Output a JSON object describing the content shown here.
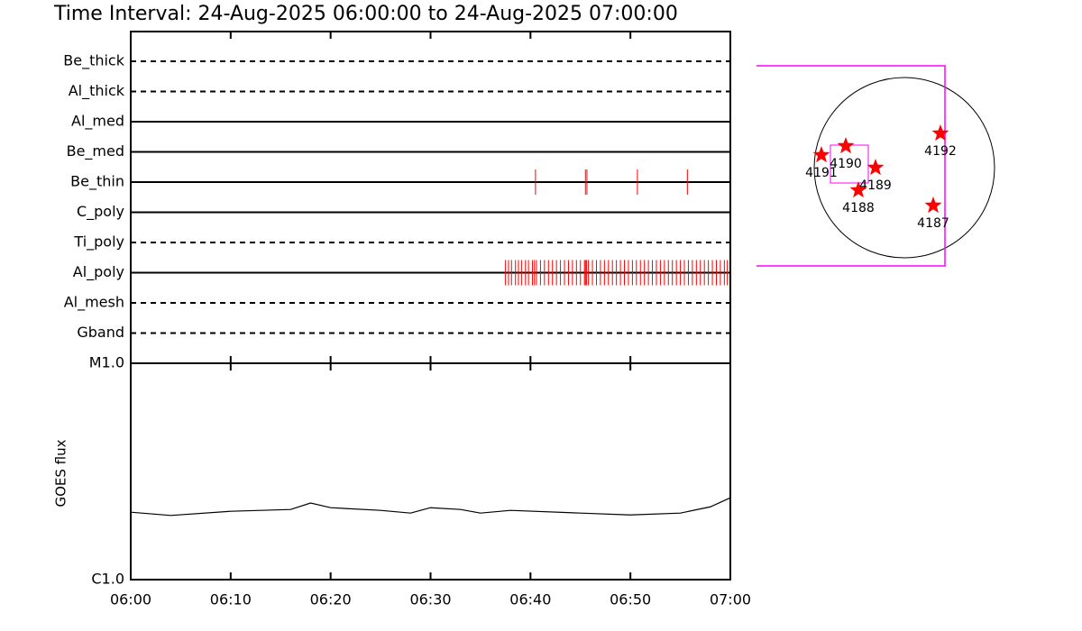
{
  "chart_data": [
    {
      "type": "event",
      "title": "Time Interval: 24-Aug-2025 06:00:00 to 24-Aug-2025 07:00:00",
      "categories": [
        "Be_thick",
        "Al_thick",
        "Al_med",
        "Be_med",
        "Be_thin",
        "C_poly",
        "Ti_poly",
        "Al_poly",
        "Al_mesh",
        "Gband"
      ],
      "styles": [
        "dashed",
        "dashed",
        "solid",
        "solid",
        "solid",
        "solid",
        "dashed",
        "solid",
        "dashed",
        "dashed"
      ],
      "events": [
        [],
        [],
        [],
        [],
        [
          40.5,
          45.5,
          45.65,
          50.7,
          55.7
        ],
        [],
        [],
        [
          37.5,
          37.8,
          38.1,
          38.5,
          38.8,
          39.1,
          39.5,
          39.8,
          40.2,
          40.4,
          40.6,
          41.0,
          41.4,
          41.8,
          42.2,
          42.6,
          43.0,
          43.4,
          43.8,
          44.2,
          44.6,
          45.0,
          45.4,
          45.5,
          45.6,
          45.8,
          46.2,
          46.6,
          47.0,
          47.4,
          47.8,
          48.2,
          48.6,
          49.0,
          49.4,
          49.8,
          50.2,
          50.6,
          51.0,
          51.4,
          51.8,
          52.2,
          52.6,
          53.0,
          53.4,
          53.8,
          54.2,
          54.6,
          55.0,
          55.4,
          55.8,
          56.2,
          56.6,
          57.0,
          57.4,
          57.8,
          58.2,
          58.6,
          59.0,
          59.4,
          59.7
        ],
        [],
        []
      ],
      "xlim": [
        0,
        60
      ],
      "color": "#ff0000"
    },
    {
      "type": "line",
      "ylabel": "GOES flux",
      "x": [
        0,
        4,
        10,
        16,
        18,
        20,
        25,
        28,
        30,
        33,
        35,
        38,
        45,
        50,
        55,
        58,
        60
      ],
      "values": [
        2.05e-06,
        1.98e-06,
        2.07e-06,
        2.11e-06,
        2.26e-06,
        2.15e-06,
        2.09e-06,
        2.03e-06,
        2.15e-06,
        2.11e-06,
        2.03e-06,
        2.09e-06,
        2.03e-06,
        1.99e-06,
        2.03e-06,
        2.17e-06,
        2.39e-06
      ],
      "xlim": [
        0,
        60
      ],
      "xticks": [
        {
          "value": 0,
          "label": "06:00"
        },
        {
          "value": 10,
          "label": "06:10"
        },
        {
          "value": 20,
          "label": "06:20"
        },
        {
          "value": 30,
          "label": "06:30"
        },
        {
          "value": 40,
          "label": "06:40"
        },
        {
          "value": 50,
          "label": "06:50"
        },
        {
          "value": 60,
          "label": "07:00"
        }
      ],
      "ylim": [
        1e-06,
        1e-05
      ],
      "yticks": [
        {
          "value": 1e-06,
          "label": "C1.0"
        },
        {
          "value": 1e-05,
          "label": "M1.0"
        }
      ],
      "log_y": true,
      "color": "#000000"
    },
    {
      "type": "map",
      "regions": [
        "4191",
        "4190",
        "4189",
        "4188",
        "4192",
        "4187"
      ],
      "color": "#ff0000",
      "box_color": "#ff00ff"
    }
  ]
}
